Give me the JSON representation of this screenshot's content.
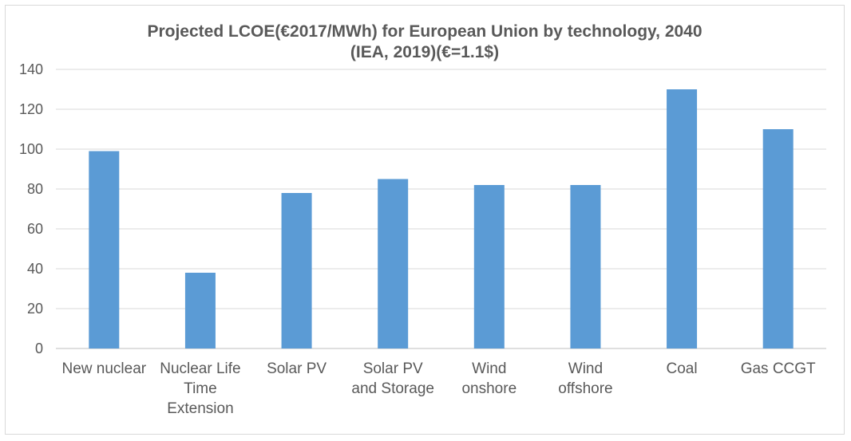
{
  "chart_data": {
    "type": "bar",
    "title_line1": "Projected LCOE(€2017/MWh) for European Union by technology, 2040",
    "title_line2": "(IEA, 2019)(€=1.1$)",
    "categories": [
      [
        "New nuclear"
      ],
      [
        "Nuclear Life",
        "Time",
        "Extension"
      ],
      [
        "Solar PV"
      ],
      [
        "Solar PV",
        "and Storage"
      ],
      [
        "Wind",
        "onshore"
      ],
      [
        "Wind",
        "offshore"
      ],
      [
        "Coal"
      ],
      [
        "Gas CCGT"
      ]
    ],
    "values": [
      99,
      38,
      78,
      85,
      82,
      82,
      130,
      110
    ],
    "ylim": [
      0,
      140
    ],
    "yticks": [
      0,
      20,
      40,
      60,
      80,
      100,
      120,
      140
    ],
    "xlabel": "",
    "ylabel": "",
    "grid": true,
    "legend": "none",
    "bar_color": "#5b9bd5",
    "grid_color": "#d9d9d9",
    "text_color": "#595959"
  }
}
